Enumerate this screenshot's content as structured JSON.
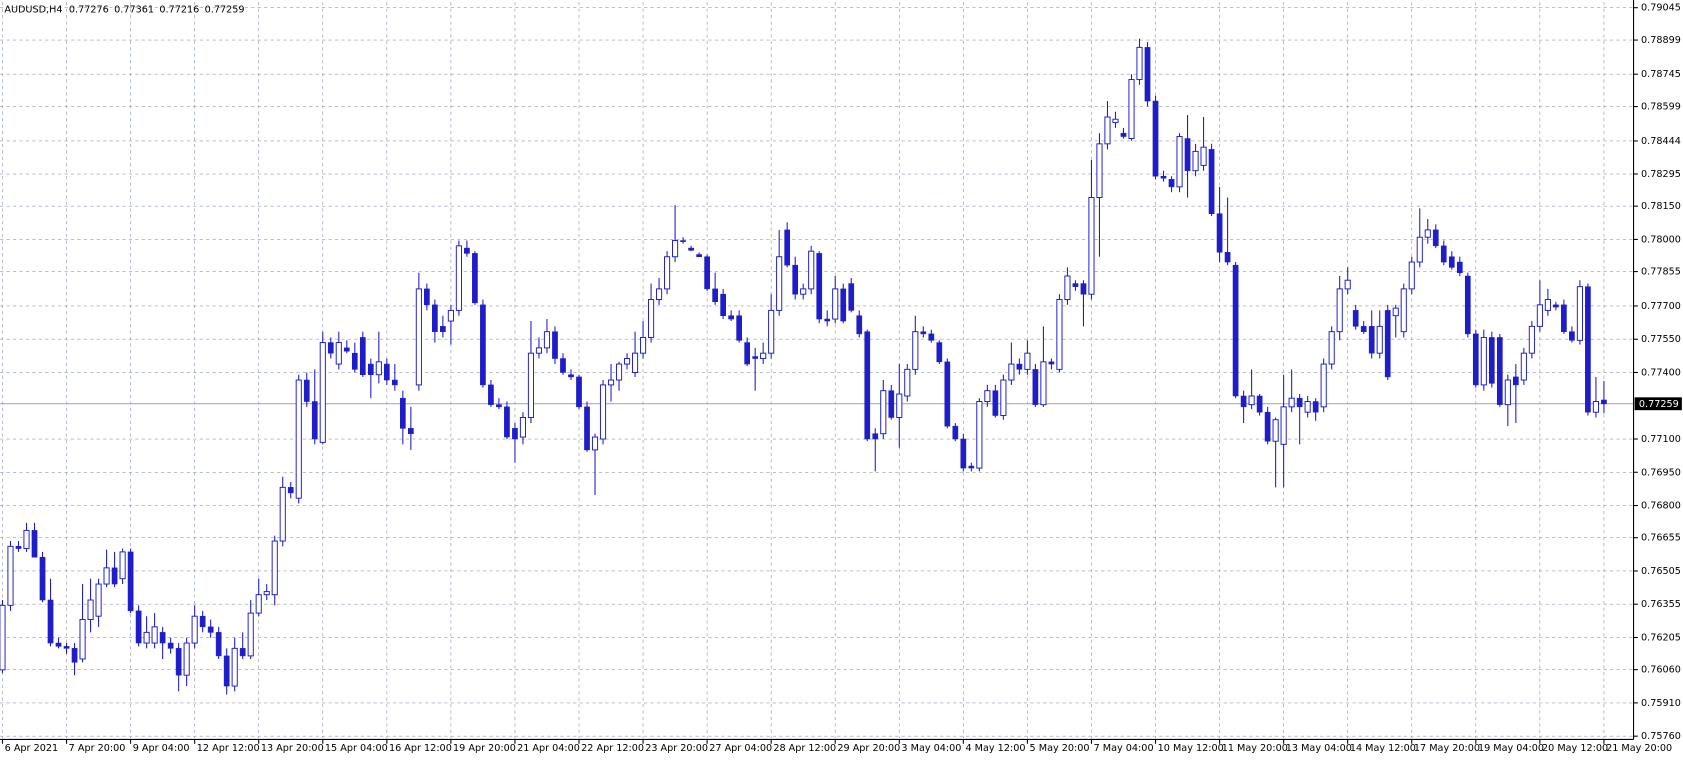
{
  "chart_data": {
    "type": "candlestick",
    "symbol": "AUDUSD,H4",
    "header_values": [
      0.77276,
      0.77361,
      0.77216,
      0.77259
    ],
    "color": "#1e1ec8",
    "grid": true,
    "current_price": 0.77259,
    "open": [
      0.76059,
      0.7635,
      0.76616,
      0.76606,
      0.76688,
      0.76567,
      0.76374,
      0.7618,
      0.76165,
      0.76156,
      0.76108,
      0.76286,
      0.76301,
      0.76446,
      0.76519,
      0.7647,
      0.76591,
      0.76325,
      0.7618,
      0.7618,
      0.76228,
      0.7618,
      0.76156,
      0.76035,
      0.7618,
      0.76301,
      0.76253,
      0.76228,
      0.76122,
      0.75986,
      0.76156,
      0.76122,
      0.76315,
      0.76398,
      0.76398,
      0.7664,
      0.76882,
      0.76833,
      0.77366,
      0.77269,
      0.77085,
      0.77535,
      0.77438,
      0.77511,
      0.77487,
      0.77558,
      0.77438,
      0.7739,
      0.77438,
      0.77366,
      0.77284,
      0.77148,
      0.77344,
      0.77777,
      0.77705,
      0.77608,
      0.77632,
      0.7768,
      0.77961,
      0.77937,
      0.77705,
      0.77344,
      0.77255,
      0.77245,
      0.77148,
      0.77109,
      0.77197,
      0.77487,
      0.77511,
      0.77584,
      0.77463,
      0.7739,
      0.7738,
      0.77245,
      0.77051,
      0.771,
      0.77344,
      0.77366,
      0.77438,
      0.774,
      0.77487,
      0.77558,
      0.77729,
      0.77777,
      0.77922,
      0.77995,
      0.77961,
      0.77932,
      0.77922,
      0.77777,
      0.77753,
      0.77656,
      0.77656,
      0.77535,
      0.77472,
      0.77463,
      0.77487,
      0.7768,
      0.78043,
      0.77884,
      0.77753,
      0.77777,
      0.77937,
      0.77641,
      0.77641,
      0.77777,
      0.77801,
      0.77656,
      0.77584,
      0.77124,
      0.77124,
      0.77318,
      0.77197,
      0.77294,
      0.77414,
      0.77584,
      0.77574,
      0.77535,
      0.77448,
      0.77158,
      0.771,
      0.76978,
      0.76969,
      0.77269,
      0.77318,
      0.77206,
      0.77366,
      0.77438,
      0.77414,
      0.77414,
      0.77255,
      0.77448,
      0.77414,
      0.77729,
      0.77801,
      0.77801,
      0.77753,
      0.78189,
      0.78431,
      0.78527,
      0.78479,
      0.78455,
      0.78721,
      0.78866,
      0.78624,
      0.78285,
      0.78271,
      0.78237,
      0.78455,
      0.7831,
      0.78334,
      0.78406,
      0.78116,
      0.77942,
      0.77884,
      0.77294,
      0.77255,
      0.77294,
      0.77221,
      0.7709,
      0.77076,
      0.77245,
      0.77284,
      0.77221,
      0.77269,
      0.77245,
      0.77438,
      0.77584,
      0.77777,
      0.7768,
      0.77608,
      0.77608,
      0.77487,
      0.7768,
      0.77656,
      0.77584,
      0.77777,
      0.77898,
      0.7801,
      0.78043,
      0.77971,
      0.77922,
      0.77898,
      0.77835,
      0.77574,
      0.77344,
      0.77558,
      0.77558,
      0.77255,
      0.7738,
      0.77366,
      0.77487,
      0.77608,
      0.7768,
      0.77705,
      0.77705,
      0.77584,
      0.77545,
      0.77787,
      0.77221,
      0.77276
    ],
    "high": [
      0.76374,
      0.7664,
      0.7664,
      0.76722,
      0.76722,
      0.76591,
      0.7647,
      0.76204,
      0.7618,
      0.7618,
      0.76446,
      0.7647,
      0.7647,
      0.76601,
      0.76591,
      0.76606,
      0.76606,
      0.7635,
      0.76301,
      0.76315,
      0.76253,
      0.76204,
      0.7618,
      0.76204,
      0.7635,
      0.76325,
      0.76286,
      0.76253,
      0.76156,
      0.76204,
      0.76228,
      0.76374,
      0.7647,
      0.76446,
      0.76664,
      0.7693,
      0.76906,
      0.7739,
      0.774,
      0.77414,
      0.77584,
      0.77558,
      0.77584,
      0.77545,
      0.77535,
      0.77584,
      0.77463,
      0.77584,
      0.77463,
      0.77438,
      0.77318,
      0.77245,
      0.7785,
      0.77801,
      0.77729,
      0.77656,
      0.77705,
      0.77995,
      0.77995,
      0.77947,
      0.77729,
      0.77366,
      0.77284,
      0.77269,
      0.77172,
      0.77221,
      0.77632,
      0.77558,
      0.77641,
      0.77608,
      0.77487,
      0.77414,
      0.7739,
      0.77269,
      0.77124,
      0.77366,
      0.77438,
      0.77448,
      0.77487,
      0.77584,
      0.77632,
      0.77801,
      0.77826,
      0.77947,
      0.78155,
      0.7801,
      0.77971,
      0.77942,
      0.77932,
      0.7785,
      0.77777,
      0.7768,
      0.7768,
      0.77558,
      0.77511,
      0.77535,
      0.77753,
      0.78043,
      0.78077,
      0.77922,
      0.77801,
      0.77971,
      0.77947,
      0.7768,
      0.77835,
      0.77801,
      0.77826,
      0.7768,
      0.77593,
      0.77148,
      0.77366,
      0.77344,
      0.77438,
      0.77438,
      0.77656,
      0.77608,
      0.77593,
      0.77545,
      0.77463,
      0.77172,
      0.77124,
      0.76993,
      0.77284,
      0.77344,
      0.77344,
      0.7739,
      0.77535,
      0.77463,
      0.77545,
      0.77438,
      0.77608,
      0.77463,
      0.77753,
      0.77874,
      0.77816,
      0.77816,
      0.78358,
      0.78479,
      0.78624,
      0.78576,
      0.78503,
      0.78745,
      0.78905,
      0.7889,
      0.78648,
      0.7831,
      0.78285,
      0.78479,
      0.78561,
      0.78431,
      0.78552,
      0.78431,
      0.78237,
      0.78189,
      0.77898,
      0.77318,
      0.77414,
      0.77303,
      0.77245,
      0.77197,
      0.7739,
      0.77414,
      0.77303,
      0.77294,
      0.77284,
      0.77463,
      0.77608,
      0.77835,
      0.77874,
      0.77705,
      0.77632,
      0.7768,
      0.7768,
      0.77705,
      0.77705,
      0.77801,
      0.77922,
      0.7814,
      0.78092,
      0.78068,
      0.77995,
      0.77947,
      0.77922,
      0.7785,
      0.77593,
      0.77593,
      0.77584,
      0.77574,
      0.7739,
      0.77438,
      0.77511,
      0.77632,
      0.77816,
      0.77777,
      0.77719,
      0.77729,
      0.77608,
      0.77816,
      0.77801,
      0.7738,
      0.77361
    ],
    "low": [
      0.76044,
      0.76325,
      0.76591,
      0.76591,
      0.76567,
      0.76364,
      0.76165,
      0.76156,
      0.76132,
      0.76035,
      0.76093,
      0.76228,
      0.76253,
      0.76432,
      0.76432,
      0.76446,
      0.76315,
      0.76165,
      0.76156,
      0.76156,
      0.76108,
      0.76132,
      0.75962,
      0.75986,
      0.76156,
      0.76228,
      0.76204,
      0.76108,
      0.75948,
      0.75962,
      0.76108,
      0.76108,
      0.76301,
      0.76374,
      0.7635,
      0.76616,
      0.76833,
      0.76809,
      0.77245,
      0.77076,
      0.77076,
      0.77463,
      0.77414,
      0.77487,
      0.774,
      0.7738,
      0.77284,
      0.77351,
      0.77344,
      0.77318,
      0.77076,
      0.77051,
      0.77318,
      0.7768,
      0.77535,
      0.77558,
      0.77526,
      0.77656,
      0.77922,
      0.77705,
      0.77332,
      0.77245,
      0.77235,
      0.771,
      0.76993,
      0.77076,
      0.77172,
      0.77463,
      0.77487,
      0.77438,
      0.7739,
      0.77366,
      0.77235,
      0.77042,
      0.76848,
      0.77076,
      0.77269,
      0.77318,
      0.77414,
      0.7738,
      0.77463,
      0.77535,
      0.77705,
      0.77753,
      0.77898,
      0.77981,
      0.77947,
      0.77922,
      0.77768,
      0.77705,
      0.77641,
      0.77632,
      0.77535,
      0.77429,
      0.77318,
      0.77438,
      0.77463,
      0.77656,
      0.77874,
      0.77729,
      0.77729,
      0.77753,
      0.77622,
      0.77608,
      0.77622,
      0.77622,
      0.77671,
      0.77558,
      0.7709,
      0.76954,
      0.771,
      0.77187,
      0.77061,
      0.77269,
      0.7739,
      0.77558,
      0.77535,
      0.77438,
      0.77148,
      0.7709,
      0.76954,
      0.76954,
      0.76954,
      0.77245,
      0.77197,
      0.77187,
      0.77344,
      0.7739,
      0.7739,
      0.77245,
      0.77245,
      0.77414,
      0.774,
      0.77705,
      0.77768,
      0.77608,
      0.77729,
      0.77922,
      0.78406,
      0.78503,
      0.78455,
      0.78445,
      0.78697,
      0.786,
      0.78271,
      0.78261,
      0.78213,
      0.78213,
      0.78189,
      0.78285,
      0.7831,
      0.78106,
      0.77898,
      0.77884,
      0.77284,
      0.77172,
      0.77235,
      0.77206,
      0.77076,
      0.76882,
      0.76882,
      0.77221,
      0.77076,
      0.77197,
      0.77182,
      0.77221,
      0.77414,
      0.77545,
      0.77753,
      0.77593,
      0.77574,
      0.77463,
      0.77463,
      0.77366,
      0.77558,
      0.77558,
      0.77753,
      0.77874,
      0.77981,
      0.77961,
      0.77884,
      0.77864,
      0.77835,
      0.77558,
      0.77332,
      0.77318,
      0.77332,
      0.77245,
      0.77158,
      0.77172,
      0.77344,
      0.77463,
      0.77584,
      0.77656,
      0.7768,
      0.77574,
      0.77535,
      0.77526,
      0.77206,
      0.77197,
      0.77216
    ],
    "close": [
      0.7635,
      0.76616,
      0.76606,
      0.76688,
      0.76567,
      0.76374,
      0.7618,
      0.76165,
      0.76156,
      0.76093,
      0.76286,
      0.76374,
      0.76446,
      0.76519,
      0.76446,
      0.76591,
      0.76325,
      0.7618,
      0.76228,
      0.76253,
      0.7618,
      0.76156,
      0.76035,
      0.7618,
      0.76301,
      0.76253,
      0.76228,
      0.76122,
      0.75986,
      0.76156,
      0.76122,
      0.76315,
      0.76398,
      0.76412,
      0.7664,
      0.76882,
      0.76857,
      0.77366,
      0.77269,
      0.771,
      0.77535,
      0.77487,
      0.77535,
      0.77496,
      0.77414,
      0.7739,
      0.7739,
      0.77448,
      0.77366,
      0.77344,
      0.77148,
      0.77124,
      0.77777,
      0.77705,
      0.77584,
      0.77584,
      0.7768,
      0.77971,
      0.77937,
      0.77714,
      0.77344,
      0.77255,
      0.77245,
      0.77109,
      0.771,
      0.77197,
      0.77487,
      0.77511,
      0.77584,
      0.77463,
      0.774,
      0.7738,
      0.77245,
      0.77051,
      0.77109,
      0.77344,
      0.77366,
      0.77438,
      0.77463,
      0.77487,
      0.77558,
      0.77729,
      0.77777,
      0.77922,
      0.77995,
      0.7799,
      0.77951,
      0.77922,
      0.77777,
      0.77719,
      0.77656,
      0.77641,
      0.77545,
      0.77438,
      0.77463,
      0.77487,
      0.7768,
      0.77922,
      0.77884,
      0.77753,
      0.77777,
      0.77947,
      0.77641,
      0.77632,
      0.77777,
      0.77632,
      0.7768,
      0.77574,
      0.771,
      0.771,
      0.77318,
      0.77197,
      0.77303,
      0.77414,
      0.77584,
      0.77574,
      0.77545,
      0.77448,
      0.77158,
      0.771,
      0.76969,
      0.76969,
      0.77269,
      0.77318,
      0.77206,
      0.77366,
      0.77438,
      0.77414,
      0.77487,
      0.77255,
      0.77448,
      0.77438,
      0.77729,
      0.77835,
      0.77787,
      0.77753,
      0.78189,
      0.78431,
      0.78552,
      0.78542,
      0.78464,
      0.78721,
      0.78866,
      0.78624,
      0.78285,
      0.78276,
      0.78237,
      0.78464,
      0.7831,
      0.78397,
      0.78416,
      0.78116,
      0.77942,
      0.77898,
      0.77294,
      0.77245,
      0.77294,
      0.77221,
      0.7709,
      0.77187,
      0.77245,
      0.77284,
      0.77245,
      0.77269,
      0.77221,
      0.77438,
      0.77584,
      0.77777,
      0.77816,
      0.77608,
      0.77584,
      0.77487,
      0.77608,
      0.7738,
      0.7769,
      0.77777,
      0.77898,
      0.7801,
      0.78043,
      0.77971,
      0.77898,
      0.77874,
      0.7785,
      0.77574,
      0.77344,
      0.77558,
      0.77351,
      0.77255,
      0.77366,
      0.77344,
      0.77487,
      0.77608,
      0.77705,
      0.77729,
      0.77695,
      0.77584,
      0.77545,
      0.77787,
      0.77221,
      0.77269,
      0.77259
    ],
    "ylim": [
      0.7575,
      0.7907
    ],
    "yticks": [
      0.79045,
      0.78899,
      0.78745,
      0.78599,
      0.78444,
      0.78295,
      {
        "value": 0.7815,
        "label": "0.78150"
      },
      {
        "value": 0.78,
        "label": "0.78000"
      },
      0.77855,
      {
        "value": 0.777,
        "label": "0.77700"
      },
      {
        "value": 0.7755,
        "label": "0.77550"
      },
      {
        "value": 0.774,
        "label": "0.77400"
      },
      {
        "value": 0.771,
        "label": "0.77100"
      },
      {
        "value": 0.7695,
        "label": "0.76950"
      },
      {
        "value": 0.768,
        "label": "0.76800"
      },
      0.76655,
      0.76505,
      0.76355,
      0.76205,
      {
        "value": 0.7606,
        "label": "0.76060"
      },
      {
        "value": 0.7591,
        "label": "0.75910"
      },
      {
        "value": 0.7576,
        "label": "0.75760"
      }
    ],
    "xlim": [
      -0.3,
      203.7
    ],
    "xticks": [
      {
        "value": 0,
        "label": "6 Apr 2021"
      },
      {
        "value": 8,
        "label": "7 Apr 20:00"
      },
      {
        "value": 16,
        "label": "9 Apr 04:00"
      },
      {
        "value": 24,
        "label": "12 Apr 12:00"
      },
      {
        "value": 32,
        "label": "13 Apr 20:00"
      },
      {
        "value": 40,
        "label": "15 Apr 04:00"
      },
      {
        "value": 48,
        "label": "16 Apr 12:00"
      },
      {
        "value": 56,
        "label": "19 Apr 20:00"
      },
      {
        "value": 64,
        "label": "21 Apr 04:00"
      },
      {
        "value": 72,
        "label": "22 Apr 12:00"
      },
      {
        "value": 80,
        "label": "23 Apr 20:00"
      },
      {
        "value": 88,
        "label": "27 Apr 04:00"
      },
      {
        "value": 96,
        "label": "28 Apr 12:00"
      },
      {
        "value": 104,
        "label": "29 Apr 20:00"
      },
      {
        "value": 112,
        "label": "3 May 04:00"
      },
      {
        "value": 120,
        "label": "4 May 12:00"
      },
      {
        "value": 128,
        "label": "5 May 20:00"
      },
      {
        "value": 136,
        "label": "7 May 04:00"
      },
      {
        "value": 144,
        "label": "10 May 12:00"
      },
      {
        "value": 152,
        "label": "11 May 20:00"
      },
      {
        "value": 160,
        "label": "13 May 04:00"
      },
      {
        "value": 168,
        "label": "14 May 12:00"
      },
      {
        "value": 176,
        "label": "17 May 20:00"
      },
      {
        "value": 184,
        "label": "19 May 04:00"
      },
      {
        "value": 192,
        "label": "20 May 12:00"
      },
      {
        "value": 200,
        "label": "21 May 20:00"
      }
    ]
  }
}
